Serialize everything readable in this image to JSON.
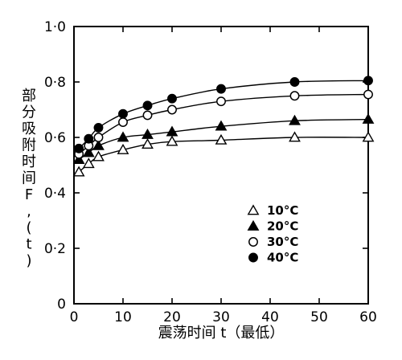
{
  "chart_data": {
    "type": "line",
    "x_ticks": [
      0,
      10,
      20,
      30,
      40,
      50,
      60
    ],
    "y_ticks": [
      {
        "value": 0,
        "label": "0"
      },
      {
        "value": 0.2,
        "label": "0·2"
      },
      {
        "value": 0.4,
        "label": "0·4"
      },
      {
        "value": 0.6,
        "label": "0·6"
      },
      {
        "value": 0.8,
        "label": "0·8"
      },
      {
        "value": 1.0,
        "label": "1·0"
      }
    ],
    "xlim": [
      0,
      60
    ],
    "ylim": [
      0,
      1.0
    ],
    "xlabel": "震荡时间 t（最低）",
    "ylabel_chars": [
      "部",
      "分",
      "吸",
      "附",
      "时",
      "间",
      "F",
      ",",
      "(",
      "t",
      ")"
    ],
    "x": [
      1,
      3,
      5,
      10,
      15,
      20,
      30,
      45,
      60
    ],
    "series": [
      {
        "name": "10°C",
        "marker": "open-triangle",
        "values": [
          0.475,
          0.505,
          0.53,
          0.555,
          0.575,
          0.585,
          0.59,
          0.6,
          0.6
        ]
      },
      {
        "name": "20°C",
        "marker": "filled-triangle",
        "values": [
          0.52,
          0.545,
          0.57,
          0.6,
          0.61,
          0.62,
          0.64,
          0.66,
          0.665
        ]
      },
      {
        "name": "30°C",
        "marker": "open-circle",
        "values": [
          0.54,
          0.57,
          0.6,
          0.655,
          0.68,
          0.7,
          0.73,
          0.75,
          0.755
        ]
      },
      {
        "name": "40°C",
        "marker": "filled-circle",
        "values": [
          0.56,
          0.595,
          0.635,
          0.685,
          0.715,
          0.74,
          0.775,
          0.8,
          0.805
        ]
      }
    ],
    "legend_position": "lower-right",
    "grid": false
  }
}
